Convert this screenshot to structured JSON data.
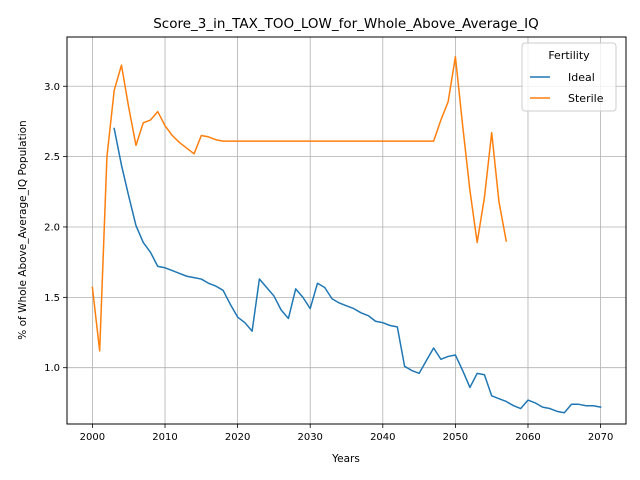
{
  "chart_data": {
    "type": "line",
    "title": "Score_3_in_TAX_TOO_LOW_for_Whole_Above_Average_IQ",
    "xlabel": "Years",
    "ylabel": "% of Whole Above_Average_IQ Population",
    "xlim": [
      1996.5,
      2073.5
    ],
    "ylim": [
      0.6,
      3.35
    ],
    "xticks": [
      2000,
      2010,
      2020,
      2030,
      2040,
      2050,
      2060,
      2070
    ],
    "yticks": [
      1.0,
      1.5,
      2.0,
      2.5,
      3.0
    ],
    "xtick_labels": [
      "2000",
      "2010",
      "2020",
      "2030",
      "2040",
      "2050",
      "2060",
      "2070"
    ],
    "ytick_labels": [
      "1.0",
      "1.5",
      "2.0",
      "2.5",
      "3.0"
    ],
    "grid": true,
    "legend": {
      "title": "Fertility",
      "position": "top-right"
    },
    "series": [
      {
        "name": "Ideal",
        "color": "#1f77b4",
        "x": [
          2003,
          2004,
          2005,
          2006,
          2007,
          2008,
          2009,
          2010,
          2011,
          2012,
          2013,
          2014,
          2015,
          2016,
          2017,
          2018,
          2019,
          2020,
          2021,
          2022,
          2023,
          2024,
          2025,
          2026,
          2027,
          2028,
          2029,
          2030,
          2031,
          2032,
          2033,
          2034,
          2035,
          2036,
          2037,
          2038,
          2039,
          2040,
          2041,
          2042,
          2043,
          2044,
          2045,
          2046,
          2047,
          2048,
          2049,
          2050,
          2051,
          2052,
          2053,
          2054,
          2055,
          2056,
          2057,
          2058,
          2059,
          2060,
          2061,
          2062,
          2063,
          2064,
          2065,
          2066,
          2067,
          2068,
          2069,
          2070
        ],
        "y": [
          2.7,
          2.44,
          2.22,
          2.01,
          1.89,
          1.82,
          1.72,
          1.71,
          1.69,
          1.67,
          1.65,
          1.64,
          1.63,
          1.6,
          1.58,
          1.55,
          1.45,
          1.36,
          1.32,
          1.26,
          1.63,
          1.57,
          1.51,
          1.41,
          1.35,
          1.56,
          1.5,
          1.42,
          1.6,
          1.57,
          1.49,
          1.46,
          1.44,
          1.42,
          1.39,
          1.37,
          1.33,
          1.32,
          1.3,
          1.29,
          1.01,
          0.98,
          0.96,
          1.05,
          1.14,
          1.06,
          1.08,
          1.09,
          0.98,
          0.86,
          0.96,
          0.95,
          0.8,
          0.78,
          0.76,
          0.73,
          0.71,
          0.77,
          0.75,
          0.72,
          0.71,
          0.69,
          0.68,
          0.74,
          0.74,
          0.73,
          0.73,
          0.72
        ]
      },
      {
        "name": "Sterile",
        "color": "#ff7f0e",
        "x": [
          2000,
          2001,
          2002,
          2003,
          2004,
          2005,
          2006,
          2007,
          2008,
          2009,
          2010,
          2011,
          2012,
          2013,
          2014,
          2015,
          2016,
          2017,
          2018,
          2019,
          2020,
          2025,
          2030,
          2035,
          2040,
          2045,
          2047,
          2048,
          2049,
          2050,
          2051,
          2052,
          2053,
          2054,
          2055,
          2056,
          2057
        ],
        "y": [
          1.57,
          1.12,
          2.5,
          2.97,
          3.15,
          2.85,
          2.58,
          2.74,
          2.76,
          2.82,
          2.72,
          2.65,
          2.6,
          2.56,
          2.52,
          2.65,
          2.64,
          2.62,
          2.61,
          2.61,
          2.61,
          2.61,
          2.61,
          2.61,
          2.61,
          2.61,
          2.61,
          2.76,
          2.89,
          3.21,
          2.72,
          2.26,
          1.89,
          2.21,
          2.67,
          2.18,
          1.9
        ]
      }
    ]
  }
}
